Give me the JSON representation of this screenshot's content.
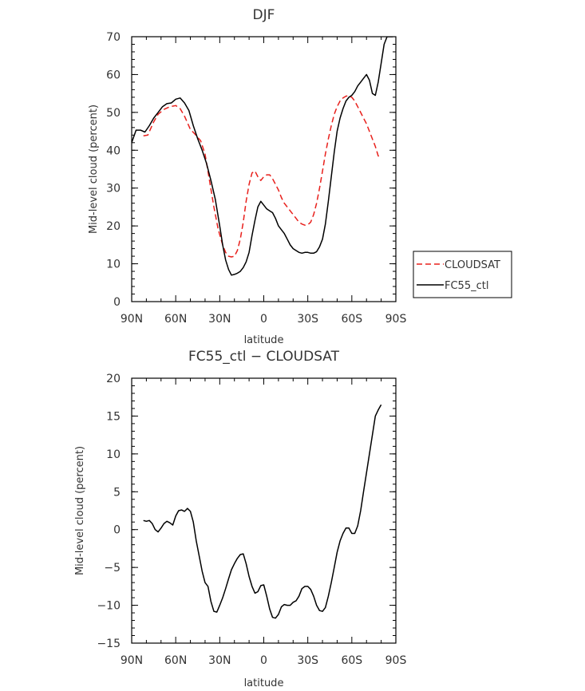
{
  "chart_data": [
    {
      "type": "line",
      "title": "DJF",
      "xlabel": "latitude",
      "ylabel": "Mid-level cloud (percent)",
      "xlim": [
        90,
        -90
      ],
      "ylim": [
        0,
        70
      ],
      "x_ticks": [
        90,
        60,
        30,
        0,
        -30,
        -60,
        -90
      ],
      "x_tick_labels": [
        "90N",
        "60N",
        "30N",
        "0",
        "30S",
        "60S",
        "90S"
      ],
      "y_ticks": [
        0,
        10,
        20,
        30,
        40,
        50,
        60,
        70
      ],
      "legend_position": "right",
      "series": [
        {
          "name": "CLOUDSAT",
          "color": "#e8201c",
          "dash": "dashed",
          "x": [
            82,
            79,
            75,
            72,
            68,
            64,
            60,
            57,
            54,
            50,
            47,
            43,
            40,
            37,
            34,
            31,
            28,
            26,
            24,
            22,
            20,
            18,
            16,
            14,
            12,
            10,
            8,
            6,
            4,
            2,
            0,
            -2,
            -4,
            -6,
            -8,
            -10,
            -12,
            -14,
            -16,
            -18,
            -20,
            -22,
            -24,
            -26,
            -28,
            -30,
            -32,
            -34,
            -36,
            -38,
            -40,
            -42,
            -44,
            -46,
            -48,
            -50,
            -52,
            -54,
            -56,
            -58,
            -60,
            -62,
            -64,
            -66,
            -68,
            -70,
            -72,
            -74,
            -76,
            -78,
            -80
          ],
          "y": [
            43.8,
            44.0,
            47.5,
            49.5,
            50.8,
            51.5,
            51.8,
            51.0,
            49.0,
            45.5,
            44.3,
            42.5,
            39.0,
            32.0,
            25.0,
            19.0,
            15.0,
            13.0,
            12.0,
            11.8,
            12.0,
            13.5,
            16.5,
            21.0,
            26.5,
            31.0,
            34.0,
            34.5,
            33.0,
            32.0,
            33.0,
            33.5,
            33.5,
            32.5,
            31.0,
            29.5,
            27.5,
            26.0,
            25.0,
            24.0,
            23.0,
            22.0,
            21.0,
            20.5,
            20.2,
            20.3,
            21.0,
            23.0,
            26.0,
            30.0,
            34.5,
            39.0,
            43.0,
            46.5,
            49.5,
            51.5,
            53.0,
            53.8,
            54.3,
            54.4,
            54.0,
            53.0,
            51.5,
            50.0,
            48.5,
            47.0,
            45.0,
            43.0,
            41.0,
            38.5,
            38.0
          ]
        },
        {
          "name": "FC55_ctl",
          "color": "#000000",
          "dash": "solid",
          "x": [
            90,
            87,
            84,
            81,
            78,
            75,
            72,
            69,
            66,
            63,
            60,
            57,
            54,
            51,
            48,
            45,
            42,
            39,
            36,
            33,
            30,
            28,
            26,
            24,
            22,
            20,
            18,
            16,
            14,
            12,
            10,
            8,
            6,
            4,
            2,
            0,
            -2,
            -4,
            -6,
            -8,
            -10,
            -12,
            -14,
            -16,
            -18,
            -20,
            -22,
            -24,
            -26,
            -28,
            -30,
            -32,
            -34,
            -36,
            -38,
            -40,
            -42,
            -44,
            -46,
            -48,
            -50,
            -52,
            -54,
            -56,
            -58,
            -60,
            -62,
            -64,
            -66,
            -68,
            -70,
            -72,
            -74,
            -76,
            -78,
            -80,
            -82,
            -84,
            -86,
            -88
          ],
          "y": [
            42.0,
            45.3,
            45.3,
            44.8,
            46.5,
            48.5,
            50.0,
            51.5,
            52.3,
            52.5,
            53.5,
            53.8,
            52.5,
            50.5,
            46.5,
            43.0,
            40.0,
            36.5,
            32.0,
            27.0,
            20.0,
            15.0,
            11.0,
            8.5,
            7.0,
            7.2,
            7.5,
            8.0,
            9.0,
            10.5,
            13.0,
            17.5,
            21.5,
            25.0,
            26.5,
            25.5,
            24.5,
            24.0,
            23.5,
            22.0,
            20.0,
            19.0,
            18.0,
            16.5,
            15.0,
            14.0,
            13.5,
            13.0,
            12.8,
            13.0,
            13.0,
            12.8,
            12.8,
            13.2,
            14.5,
            16.5,
            20.5,
            26.5,
            33.0,
            39.5,
            45.0,
            48.5,
            51.0,
            53.0,
            54.0,
            54.5,
            55.5,
            57.0,
            58.0,
            59.0,
            60.0,
            58.5,
            55.0,
            54.5,
            58.0,
            63.0,
            68.0,
            70.0,
            70.0,
            70.0
          ]
        }
      ]
    },
    {
      "type": "line",
      "title": "FC55_ctl − CLOUDSAT",
      "xlabel": "latitude",
      "ylabel": "Mid-level cloud (percent)",
      "xlim": [
        90,
        -90
      ],
      "ylim": [
        -15,
        20
      ],
      "x_ticks": [
        90,
        60,
        30,
        0,
        -30,
        -60,
        -90
      ],
      "x_tick_labels": [
        "90N",
        "60N",
        "30N",
        "0",
        "30S",
        "60S",
        "90S"
      ],
      "y_ticks": [
        -15,
        -10,
        -5,
        0,
        5,
        10,
        15,
        20
      ],
      "y_tick_labels": [
        "−15",
        "−10",
        "−5",
        "0",
        "5",
        "10",
        "15",
        "20"
      ],
      "series": [
        {
          "color": "#000000",
          "dash": "solid",
          "x": [
            82,
            80,
            78,
            76,
            74,
            72,
            70,
            68,
            66,
            64,
            62,
            60,
            58,
            56,
            54,
            52,
            50,
            48,
            46,
            44,
            42,
            40,
            38,
            36,
            34,
            32,
            30,
            28,
            26,
            24,
            22,
            20,
            18,
            16,
            14,
            12,
            10,
            8,
            6,
            4,
            2,
            0,
            -2,
            -4,
            -6,
            -8,
            -10,
            -12,
            -14,
            -16,
            -18,
            -20,
            -22,
            -24,
            -26,
            -28,
            -30,
            -32,
            -34,
            -36,
            -38,
            -40,
            -42,
            -44,
            -46,
            -48,
            -50,
            -52,
            -54,
            -56,
            -58,
            -60,
            -62,
            -64,
            -66,
            -68,
            -70,
            -72,
            -74,
            -76,
            -78,
            -80
          ],
          "y": [
            1.2,
            1.1,
            1.2,
            0.8,
            0.0,
            -0.3,
            0.2,
            0.8,
            1.1,
            0.9,
            0.6,
            1.8,
            2.5,
            2.6,
            2.4,
            2.8,
            2.4,
            1.0,
            -1.5,
            -3.5,
            -5.5,
            -7.0,
            -7.5,
            -9.5,
            -10.8,
            -10.9,
            -10.0,
            -9.0,
            -7.8,
            -6.5,
            -5.3,
            -4.5,
            -3.8,
            -3.3,
            -3.2,
            -4.5,
            -6.2,
            -7.5,
            -8.4,
            -8.2,
            -7.4,
            -7.3,
            -8.8,
            -10.5,
            -11.6,
            -11.7,
            -11.2,
            -10.2,
            -9.9,
            -10.0,
            -10.0,
            -9.6,
            -9.4,
            -8.8,
            -7.8,
            -7.5,
            -7.5,
            -7.9,
            -8.8,
            -10.0,
            -10.7,
            -10.8,
            -10.3,
            -8.8,
            -7.0,
            -5.0,
            -3.0,
            -1.5,
            -0.5,
            0.2,
            0.2,
            -0.5,
            -0.5,
            0.5,
            2.5,
            5.0,
            7.5,
            10.0,
            12.5,
            15.0,
            15.8,
            16.5
          ]
        }
      ]
    }
  ]
}
